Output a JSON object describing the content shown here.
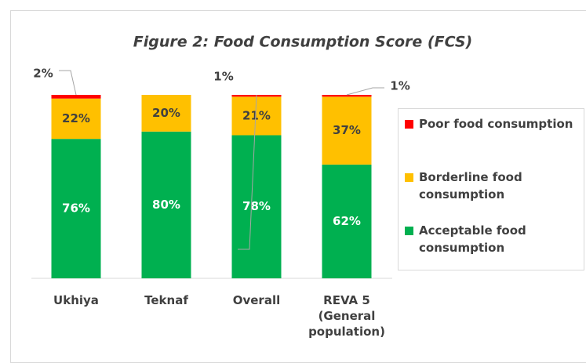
{
  "chart_data": {
    "type": "bar",
    "stacked": true,
    "title": "Figure 2: Food Consumption Score (FCS)",
    "categories": [
      "Ukhiya",
      "Teknaf",
      "Overall",
      "REVA 5 (General population)"
    ],
    "series": [
      {
        "name": "Poor food consumption",
        "color": "#ff0000",
        "values": [
          2,
          0,
          1,
          1
        ],
        "value_labels": [
          "2%",
          null,
          "1%",
          "1%"
        ]
      },
      {
        "name": "Borderline food consumption",
        "color": "#ffc000",
        "values": [
          22,
          20,
          21,
          37
        ],
        "value_labels": [
          "22%",
          "20%",
          "21%",
          "37%"
        ]
      },
      {
        "name": "Acceptable food consumption",
        "color": "#00b050",
        "values": [
          76,
          80,
          78,
          62
        ],
        "value_labels": [
          "76%",
          "80%",
          "78%",
          "62%"
        ]
      }
    ],
    "ylim": [
      0,
      100
    ]
  }
}
